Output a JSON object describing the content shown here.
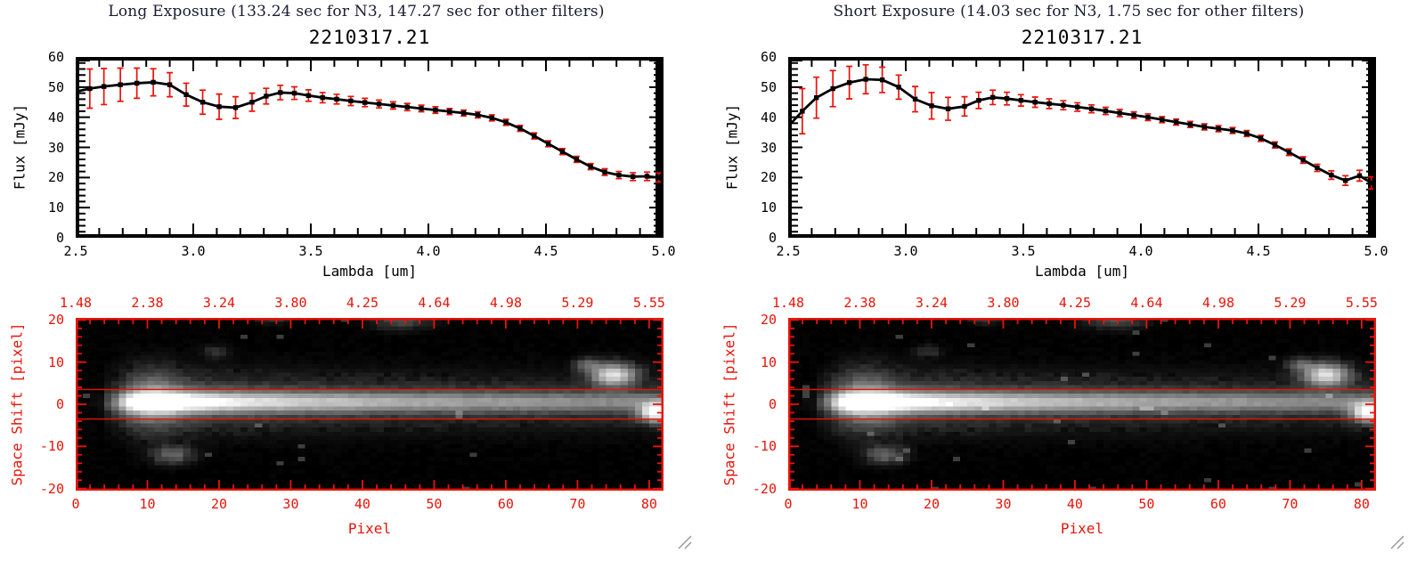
{
  "colors": {
    "accent_red": "#e81309",
    "axis_black": "#000000",
    "header_text": "#1b1b33",
    "image_background": "#000000"
  },
  "panels": [
    {
      "header": "Long Exposure (133.24 sec for N3, 147.27 sec for other filters)",
      "plot_title": "2210317.21"
    },
    {
      "header": "Short Exposure (14.03 sec for N3, 1.75 sec for other filters)",
      "plot_title": "2210317.21"
    }
  ],
  "chart_data": [
    {
      "type": "line",
      "panel": "long-exposure",
      "title": "2210317.21",
      "xlabel": "Lambda [um]",
      "ylabel": "Flux [mJy]",
      "xlim": [
        2.5,
        5.0
      ],
      "ylim": [
        0,
        60
      ],
      "x_tick_labels": [
        "2.5",
        "3.0",
        "3.5",
        "4.0",
        "4.5",
        "5.0"
      ],
      "y_ticks": [
        0,
        10,
        20,
        30,
        40,
        50,
        60
      ],
      "line_color": "#000000",
      "error_color": "#e81309",
      "marker": "square",
      "x": [
        2.5,
        2.56,
        2.62,
        2.69,
        2.76,
        2.83,
        2.9,
        2.97,
        3.04,
        3.11,
        3.18,
        3.25,
        3.31,
        3.37,
        3.43,
        3.49,
        3.55,
        3.61,
        3.67,
        3.73,
        3.79,
        3.85,
        3.91,
        3.97,
        4.03,
        4.09,
        4.15,
        4.21,
        4.27,
        4.33,
        4.39,
        4.45,
        4.51,
        4.57,
        4.63,
        4.69,
        4.75,
        4.81,
        4.87,
        4.93,
        4.98
      ],
      "y": [
        48.5,
        49.5,
        50.2,
        50.8,
        51.3,
        51.6,
        50.8,
        47.5,
        45.0,
        43.5,
        43.2,
        45.0,
        47.0,
        48.2,
        48.0,
        47.2,
        46.5,
        46.0,
        45.4,
        44.9,
        44.4,
        43.9,
        43.4,
        42.9,
        42.4,
        41.9,
        41.4,
        40.8,
        39.8,
        38.3,
        36.3,
        33.8,
        31.2,
        28.6,
        26.0,
        23.6,
        21.8,
        20.8,
        20.3,
        20.4,
        20.0
      ],
      "y_err": [
        7.5,
        6.5,
        6.0,
        5.5,
        5.0,
        4.5,
        4.0,
        3.8,
        4.0,
        4.2,
        3.6,
        3.0,
        2.6,
        2.4,
        2.1,
        1.9,
        1.7,
        1.6,
        1.5,
        1.4,
        1.3,
        1.2,
        1.2,
        1.1,
        1.1,
        1.0,
        1.0,
        1.0,
        1.0,
        1.0,
        1.0,
        1.0,
        1.0,
        1.0,
        1.0,
        1.0,
        1.1,
        1.2,
        1.3,
        1.4,
        1.5
      ]
    },
    {
      "type": "heatmap",
      "panel": "long-exposure",
      "xlabel": "Pixel",
      "ylabel": "Space Shift [pixel]",
      "xlim": [
        0,
        82
      ],
      "ylim": [
        -20.5,
        20.5
      ],
      "x_ticks": [
        0,
        10,
        20,
        30,
        40,
        50,
        60,
        70,
        80
      ],
      "y_ticks": [
        -20,
        -10,
        0,
        10,
        20
      ],
      "top_axis_labels": [
        "1.48",
        "2.38",
        "3.24",
        "3.80",
        "4.25",
        "4.64",
        "4.98",
        "5.29",
        "5.55"
      ],
      "axis_color": "#e81309",
      "background": "#000000",
      "aperture_lines_y": [
        3.5,
        -3.5
      ],
      "seed": 1,
      "noise": 0.06,
      "gamma": 0.8,
      "trace": {
        "center": 0.5,
        "sigma": 1.6,
        "halo_sigma": 4.2,
        "halo_frac": 0.3,
        "amplitude_profile": [
          [
            0,
            0
          ],
          [
            3,
            0.02
          ],
          [
            5,
            0.3
          ],
          [
            7,
            0.78
          ],
          [
            9,
            0.98
          ],
          [
            13,
            1.0
          ],
          [
            16,
            0.9
          ],
          [
            20,
            0.78
          ],
          [
            25,
            0.68
          ],
          [
            31,
            0.6
          ],
          [
            38,
            0.54
          ],
          [
            46,
            0.48
          ],
          [
            54,
            0.44
          ],
          [
            62,
            0.41
          ],
          [
            70,
            0.38
          ],
          [
            76,
            0.36
          ],
          [
            82,
            0.34
          ]
        ]
      },
      "blobs": [
        {
          "x": 74.5,
          "y": 7,
          "sx": 2.1,
          "sy": 1.8,
          "amp": 0.85
        },
        {
          "x": 71,
          "y": 9.5,
          "sx": 1.2,
          "sy": 1.0,
          "amp": 0.3
        },
        {
          "x": 80.5,
          "y": -2,
          "sx": 1.6,
          "sy": 1.5,
          "amp": 1.0
        },
        {
          "x": 13,
          "y": -12,
          "sx": 1.8,
          "sy": 1.4,
          "amp": 0.32
        },
        {
          "x": 45,
          "y": 20,
          "sx": 2.6,
          "sy": 1.4,
          "amp": 0.24
        },
        {
          "x": 27,
          "y": 20.5,
          "sx": 1.4,
          "sy": 1.0,
          "amp": 0.15
        },
        {
          "x": 10.5,
          "y": 1,
          "sx": 2.6,
          "sy": 4.5,
          "amp": 0.3
        },
        {
          "x": 19,
          "y": 12.5,
          "sx": 1.2,
          "sy": 1.0,
          "amp": 0.12
        }
      ]
    },
    {
      "type": "line",
      "panel": "short-exposure",
      "title": "2210317.21",
      "xlabel": "Lambda [um]",
      "ylabel": "Flux [mJy]",
      "xlim": [
        2.5,
        5.0
      ],
      "ylim": [
        0,
        60
      ],
      "x_tick_labels": [
        "2.5",
        "3.0",
        "3.5",
        "4.0",
        "4.5",
        "5.0"
      ],
      "y_ticks": [
        0,
        10,
        20,
        30,
        40,
        50,
        60
      ],
      "line_color": "#000000",
      "error_color": "#e81309",
      "marker": "square",
      "x": [
        2.5,
        2.56,
        2.62,
        2.69,
        2.76,
        2.83,
        2.9,
        2.97,
        3.04,
        3.11,
        3.18,
        3.25,
        3.31,
        3.37,
        3.43,
        3.49,
        3.55,
        3.61,
        3.67,
        3.73,
        3.79,
        3.85,
        3.91,
        3.97,
        4.03,
        4.09,
        4.15,
        4.21,
        4.27,
        4.33,
        4.39,
        4.45,
        4.51,
        4.57,
        4.63,
        4.69,
        4.75,
        4.81,
        4.87,
        4.93,
        4.98
      ],
      "y": [
        37.0,
        42.0,
        46.5,
        49.5,
        51.5,
        52.6,
        52.4,
        50.0,
        46.0,
        43.8,
        42.8,
        43.6,
        45.6,
        46.6,
        46.2,
        45.6,
        45.0,
        44.5,
        44.0,
        43.4,
        42.8,
        42.1,
        41.4,
        40.7,
        40.0,
        39.2,
        38.4,
        37.6,
        36.8,
        36.2,
        35.6,
        34.6,
        33.0,
        30.8,
        28.4,
        25.8,
        23.2,
        20.8,
        19.0,
        20.6,
        18.2
      ],
      "y_err": [
        9.0,
        7.5,
        6.8,
        6.0,
        5.4,
        4.8,
        4.2,
        4.0,
        4.2,
        4.4,
        3.8,
        3.2,
        2.7,
        2.4,
        2.1,
        1.9,
        1.7,
        1.6,
        1.5,
        1.4,
        1.3,
        1.2,
        1.2,
        1.1,
        1.1,
        1.0,
        1.0,
        1.0,
        1.0,
        1.0,
        1.0,
        1.0,
        1.0,
        1.0,
        1.1,
        1.1,
        1.2,
        1.4,
        1.6,
        1.8,
        2.0
      ]
    },
    {
      "type": "heatmap",
      "panel": "short-exposure",
      "xlabel": "Pixel",
      "ylabel": "Space Shift [pixel]",
      "xlim": [
        0,
        82
      ],
      "ylim": [
        -20.5,
        20.5
      ],
      "x_ticks": [
        0,
        10,
        20,
        30,
        40,
        50,
        60,
        70,
        80
      ],
      "y_ticks": [
        -20,
        -10,
        0,
        10,
        20
      ],
      "top_axis_labels": [
        "1.48",
        "2.38",
        "3.24",
        "3.80",
        "4.25",
        "4.64",
        "4.98",
        "5.29",
        "5.55"
      ],
      "axis_color": "#e81309",
      "background": "#000000",
      "aperture_lines_y": [
        3.5,
        -3.5
      ],
      "seed": 2,
      "noise": 0.06,
      "gamma": 0.8,
      "trace": {
        "center": 0.5,
        "sigma": 1.6,
        "halo_sigma": 4.2,
        "halo_frac": 0.3,
        "amplitude_profile": [
          [
            0,
            0
          ],
          [
            3,
            0.02
          ],
          [
            5,
            0.3
          ],
          [
            7,
            0.78
          ],
          [
            9,
            0.98
          ],
          [
            13,
            1.0
          ],
          [
            16,
            0.9
          ],
          [
            20,
            0.78
          ],
          [
            25,
            0.68
          ],
          [
            31,
            0.6
          ],
          [
            38,
            0.54
          ],
          [
            46,
            0.48
          ],
          [
            54,
            0.44
          ],
          [
            62,
            0.41
          ],
          [
            70,
            0.38
          ],
          [
            76,
            0.36
          ],
          [
            82,
            0.34
          ]
        ]
      },
      "blobs": [
        {
          "x": 74.5,
          "y": 7,
          "sx": 2.1,
          "sy": 1.8,
          "amp": 0.85
        },
        {
          "x": 71,
          "y": 9.5,
          "sx": 1.2,
          "sy": 1.0,
          "amp": 0.3
        },
        {
          "x": 80.5,
          "y": -2,
          "sx": 1.6,
          "sy": 1.5,
          "amp": 1.0
        },
        {
          "x": 13,
          "y": -12,
          "sx": 1.8,
          "sy": 1.4,
          "amp": 0.32
        },
        {
          "x": 45,
          "y": 20,
          "sx": 2.6,
          "sy": 1.4,
          "amp": 0.24
        },
        {
          "x": 27,
          "y": 20.5,
          "sx": 1.4,
          "sy": 1.0,
          "amp": 0.15
        },
        {
          "x": 10.5,
          "y": 1,
          "sx": 2.6,
          "sy": 4.5,
          "amp": 0.3
        },
        {
          "x": 19,
          "y": 12.5,
          "sx": 1.2,
          "sy": 1.0,
          "amp": 0.12
        }
      ]
    }
  ]
}
